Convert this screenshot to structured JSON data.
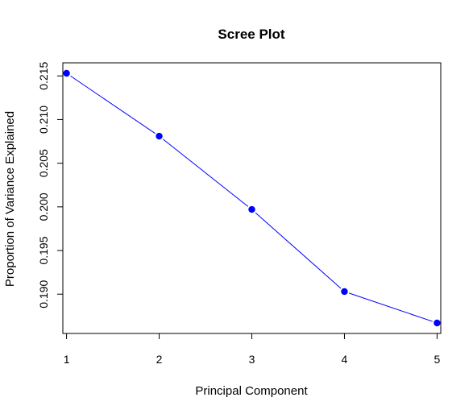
{
  "chart_data": {
    "type": "line",
    "title": "Scree Plot",
    "xlabel": "Principal Component",
    "ylabel": "Proportion of Variance Explained",
    "x": [
      1,
      2,
      3,
      4,
      5
    ],
    "x_ticks": [
      "1",
      "2",
      "3",
      "4",
      "5"
    ],
    "y_ticks": [
      "0.190",
      "0.195",
      "0.200",
      "0.205",
      "0.210",
      "0.215"
    ],
    "ylim": [
      0.1855,
      0.2165
    ],
    "series": [
      {
        "name": "Proportion of Variance Explained",
        "values": [
          0.2153,
          0.2081,
          0.1997,
          0.1903,
          0.1867
        ]
      }
    ],
    "line_color": "#0000ff",
    "point_color": "#0000ff",
    "grid": false
  }
}
